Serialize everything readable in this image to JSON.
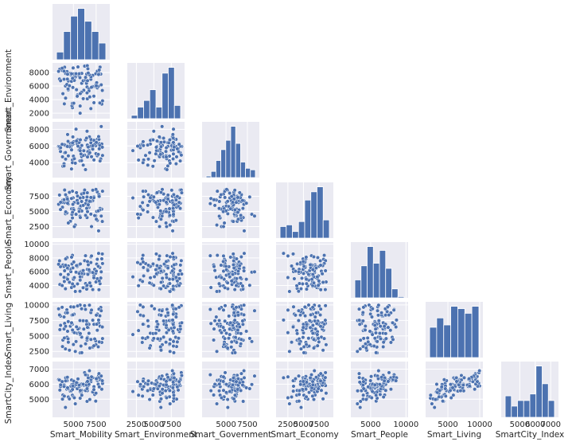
{
  "chart_data": {
    "type": "pairplot",
    "variables": [
      "Smart_Mobility",
      "Smart_Environment",
      "Smart_Government",
      "Smart_Economy",
      "Smart_People",
      "Smart_Living",
      "SmartCity_Index"
    ],
    "corner": true,
    "grid": true,
    "colors": {
      "panel_bg": "#eaeaf2",
      "grid": "#ffffff",
      "marker": "#4c72b0",
      "marker_edge": "#ffffff",
      "text": "#262626"
    },
    "axes": {
      "Smart_Mobility": {
        "range": [
          2700,
          9000
        ],
        "ticks": [
          5000,
          7500
        ]
      },
      "Smart_Environment": {
        "range": [
          1200,
          9400
        ],
        "ticks": [
          2500,
          5000,
          7500
        ],
        "row_ticks": [
          2000,
          4000,
          6000,
          8000
        ]
      },
      "Smart_Government": {
        "range": [
          2200,
          8900
        ],
        "ticks": [
          5000,
          7500
        ],
        "row_ticks": [
          4000,
          6000,
          8000
        ]
      },
      "Smart_Economy": {
        "range": [
          600,
          9800
        ],
        "ticks": [
          2500,
          5000,
          7500
        ],
        "row_ticks": [
          2500,
          5000,
          7500
        ]
      },
      "Smart_People": {
        "range": [
          2200,
          10300
        ],
        "ticks": [
          5000,
          10000
        ],
        "row_ticks": [
          4000,
          6000,
          8000,
          10000
        ]
      },
      "Smart_Living": {
        "range": [
          1500,
          10500
        ],
        "ticks": [
          5000,
          10000
        ],
        "row_ticks": [
          2500,
          5000,
          7500,
          10000
        ]
      },
      "SmartCity_Index": {
        "range": [
          3800,
          7500
        ],
        "ticks": [
          5000,
          6000,
          7000
        ],
        "row_ticks": [
          5000,
          6000,
          7000
        ]
      }
    },
    "histograms": {
      "Smart_Mobility": [
        6,
        22,
        34,
        40,
        30,
        22,
        13
      ],
      "Smart_Environment": [
        4,
        14,
        22,
        35,
        14,
        55,
        62,
        16
      ],
      "Smart_Government": [
        1,
        4,
        11,
        18,
        24,
        33,
        22,
        10,
        6,
        5
      ],
      "Smart_Economy": [
        7,
        8,
        4,
        10,
        23,
        28,
        31,
        11
      ],
      "Smart_People": [
        14,
        25,
        40,
        27,
        37,
        23,
        7,
        1
      ],
      "Smart_Living": [
        13,
        17,
        14,
        22,
        21,
        19,
        22
      ],
      "SmartCity_Index": [
        23,
        12,
        18,
        18,
        25,
        55,
        36,
        18
      ]
    },
    "data": {
      "Smart_Mobility": [
        3800,
        3844,
        4033,
        6500,
        3580,
        7625,
        7452,
        4891,
        7340,
        5740,
        5452,
        4720,
        4430,
        6232,
        4125,
        5911,
        5420,
        4280,
        7123,
        8202,
        4300,
        4150,
        7480,
        7770,
        5630,
        5740,
        4660,
        4840,
        7630,
        8010,
        6530,
        8120,
        7810,
        6070,
        5720,
        4000,
        7260,
        4890,
        7250,
        6920,
        4970,
        3970,
        5830,
        4440,
        3510,
        4790,
        5080,
        6330,
        6710,
        4560,
        3370,
        6140,
        6590,
        5500,
        6920,
        6530,
        7130,
        3970,
        7560,
        3470,
        4410,
        4800,
        5900,
        5920,
        7930,
        6930,
        5630,
        5210,
        7910,
        5000,
        5100,
        5040,
        6080,
        4900,
        6990,
        7730,
        7770,
        5740,
        5290,
        4940,
        5760,
        6760,
        8180,
        5340,
        8060,
        6460,
        6340,
        4360,
        6440,
        6710,
        7840,
        4340,
        7520,
        3760,
        6630,
        4140,
        6500,
        6800,
        6550,
        3590
      ],
      "Smart_Environment": [
        8260,
        4870,
        8770,
        5860,
        6730,
        5730,
        7810,
        2810,
        5950,
        3060,
        4690,
        7660,
        5430,
        8930,
        6010,
        6400,
        4500,
        6230,
        5910,
        3820,
        8120,
        7840,
        6210,
        7660,
        7510,
        7860,
        7850,
        3090,
        8180,
        7760,
        8990,
        3340,
        7850,
        6770,
        7230,
        3380,
        3550,
        3450,
        4510,
        2680,
        8660,
        8190,
        7800,
        6740,
        8490,
        6690,
        7780,
        6880,
        5580,
        6040,
        8160,
        5380,
        8540,
        8810,
        6990,
        4120,
        7560,
        7000,
        6490,
        7030,
        5570,
        7800,
        5090,
        7860,
        8780,
        7340,
        7800,
        7320,
        3510,
        7240,
        6830,
        3470,
        4140,
        7140,
        5820,
        5960,
        7700,
        2000,
        7810,
        5790,
        4890,
        7660,
        5350,
        5460,
        6180,
        7770,
        7280,
        7730,
        6400,
        5280,
        8360,
        7020,
        6030,
        8620,
        7910,
        4220,
        4990,
        4400,
        6780,
        6790
      ],
      "Smart_Government": [
        4700,
        3560,
        5180,
        7010,
        5340,
        4820,
        6040,
        4310,
        6220,
        5790,
        6750,
        5740,
        5930,
        4900,
        5210,
        4710,
        6230,
        6070,
        5620,
        4860,
        5940,
        6040,
        5080,
        6310,
        5500,
        5770,
        6310,
        6110,
        6800,
        4450,
        5950,
        6240,
        6800,
        4870,
        4210,
        6150,
        4320,
        3990,
        6680,
        5980,
        6240,
        3860,
        5040,
        4810,
        5700,
        3240,
        6470,
        3160,
        5430,
        5920,
        5940,
        5430,
        5320,
        5980,
        6390,
        6110,
        6030,
        3600,
        6480,
        5900,
        6560,
        5530,
        4230,
        6060,
        4200,
        6790,
        6420,
        3930,
        6050,
        4780,
        4470,
        6520,
        3700,
        6380,
        4710,
        4990,
        7130,
        5440,
        8020,
        7090,
        6740,
        7100,
        5850,
        6600,
        8340,
        6980,
        6730,
        7380,
        6940,
        5050,
        5660,
        5940,
        6430,
        6200,
        5870,
        4420,
        7770,
        5190,
        4680,
        5790
      ],
      "Smart_Economy": [
        5700,
        6870,
        8540,
        3990,
        5320,
        8230,
        4290,
        3930,
        4320,
        5840,
        7540,
        3410,
        6230,
        8540,
        4620,
        7880,
        6820,
        4750,
        6780,
        8340,
        7300,
        4930,
        8640,
        7510,
        5410,
        5310,
        3370,
        4510,
        3530,
        5390,
        8080,
        5390,
        7780,
        7310,
        4220,
        6460,
        7410,
        8340,
        7270,
        4560,
        7250,
        6890,
        5910,
        3100,
        6310,
        7140,
        6470,
        6290,
        5670,
        8150,
        6180,
        8020,
        5820,
        6370,
        7310,
        4930,
        8510,
        6940,
        5000,
        7710,
        6690,
        5440,
        6650,
        5070,
        5500,
        6660,
        5010,
        2760,
        5270,
        5460,
        2500,
        5240,
        6000,
        4860,
        2510,
        5090,
        1800,
        7230,
        4530,
        6170,
        4000,
        6760,
        3350,
        8100,
        4240,
        5510,
        4360,
        6360,
        6820,
        6510,
        7480,
        7050,
        3720,
        6490,
        6100,
        7760,
        7390,
        6670,
        4970,
        6520
      ],
      "Smart_People": [
        3940,
        6980,
        6140,
        3570,
        6730,
        7800,
        5780,
        3960,
        6350,
        4780,
        4230,
        6010,
        5600,
        7600,
        3520,
        6080,
        6760,
        5050,
        5880,
        7190,
        8050,
        7860,
        4510,
        6780,
        5880,
        5920,
        6390,
        7120,
        4980,
        5080,
        5660,
        7870,
        3380,
        3670,
        3160,
        4580,
        5390,
        8380,
        5120,
        7330,
        5000,
        5180,
        5490,
        6830,
        4140,
        3700,
        3890,
        8320,
        5850,
        4460,
        7080,
        5700,
        5610,
        6960,
        3920,
        6330,
        3400,
        6750,
        7110,
        7580,
        6440,
        8110,
        5270,
        5770,
        4260,
        8160,
        5740,
        3130,
        6610,
        4910,
        5150,
        7410,
        6170,
        4230,
        8290,
        6780,
        8660,
        5250,
        5930,
        6550,
        7130,
        6120,
        8580,
        6880,
        5980,
        3460,
        4280,
        4900,
        3930,
        6290,
        4650,
        6540,
        6080,
        3990,
        7000,
        6940,
        4020,
        4370,
        7480,
        5600
      ],
      "Smart_Living": [
        3280,
        4330,
        7020,
        4310,
        8200,
        5910,
        4200,
        5860,
        4510,
        9980,
        9830,
        9690,
        7310,
        9880,
        2900,
        4800,
        5430,
        9210,
        3200,
        4570,
        4780,
        8720,
        3580,
        7120,
        6220,
        2260,
        6560,
        8360,
        8530,
        9600,
        7120,
        3950,
        9320,
        7390,
        7480,
        4660,
        6870,
        6880,
        3410,
        8920,
        5690,
        8060,
        3360,
        3980,
        6010,
        6990,
        8500,
        9280,
        6870,
        2690,
        9370,
        6100,
        4620,
        6120,
        8770,
        4760,
        7530,
        6120,
        6880,
        8380,
        4540,
        7120,
        9380,
        2290,
        6580,
        4420,
        5490,
        2490,
        8240,
        3610,
        5520,
        9670,
        7450,
        5950,
        9170,
        3240,
        7560,
        5220,
        4090,
        8400,
        5380,
        9960,
        6440,
        6460,
        9060,
        6860,
        3720,
        5750,
        7420,
        5420,
        4030,
        8730,
        8340,
        9620,
        6340,
        6550,
        4600,
        3040,
        6370,
        6710
      ],
      "SmartCity_Index": [
        5006,
        5280,
        5906,
        4859,
        5845,
        6414,
        4874,
        5270,
        5316,
        5883,
        6070,
        5864,
        5747,
        6765,
        4455,
        5585,
        5701,
        5664,
        5480,
        6049,
        6233,
        6420,
        5401,
        6587,
        5839,
        5070,
        5537,
        5983,
        6231,
        6511,
        6577,
        5665,
        6701,
        6015,
        5556,
        5207,
        5836,
        6258,
        5640,
        6168,
        5983,
        5944,
        5451,
        5149,
        5606,
        5564,
        5847,
        6624,
        6020,
        5023,
        6303,
        5925,
        5879,
        6349,
        6381,
        5567,
        6436,
        5847,
        6304,
        6272,
        5695,
        6279,
        6007,
        5268,
        6274,
        6299,
        5933,
        4697,
        6336,
        5160,
        5096,
        6199,
        5994,
        5650,
        6484,
        5996,
        6425,
        5512,
        5979,
        5876,
        5582,
        6890,
        6228,
        6101,
        6541,
        6132,
        5575,
        5760,
        5940,
        5985,
        5818,
        6457,
        6361,
        6170,
        6420,
        6216,
        5701,
        4983,
        6181,
        5952
      ]
    }
  }
}
